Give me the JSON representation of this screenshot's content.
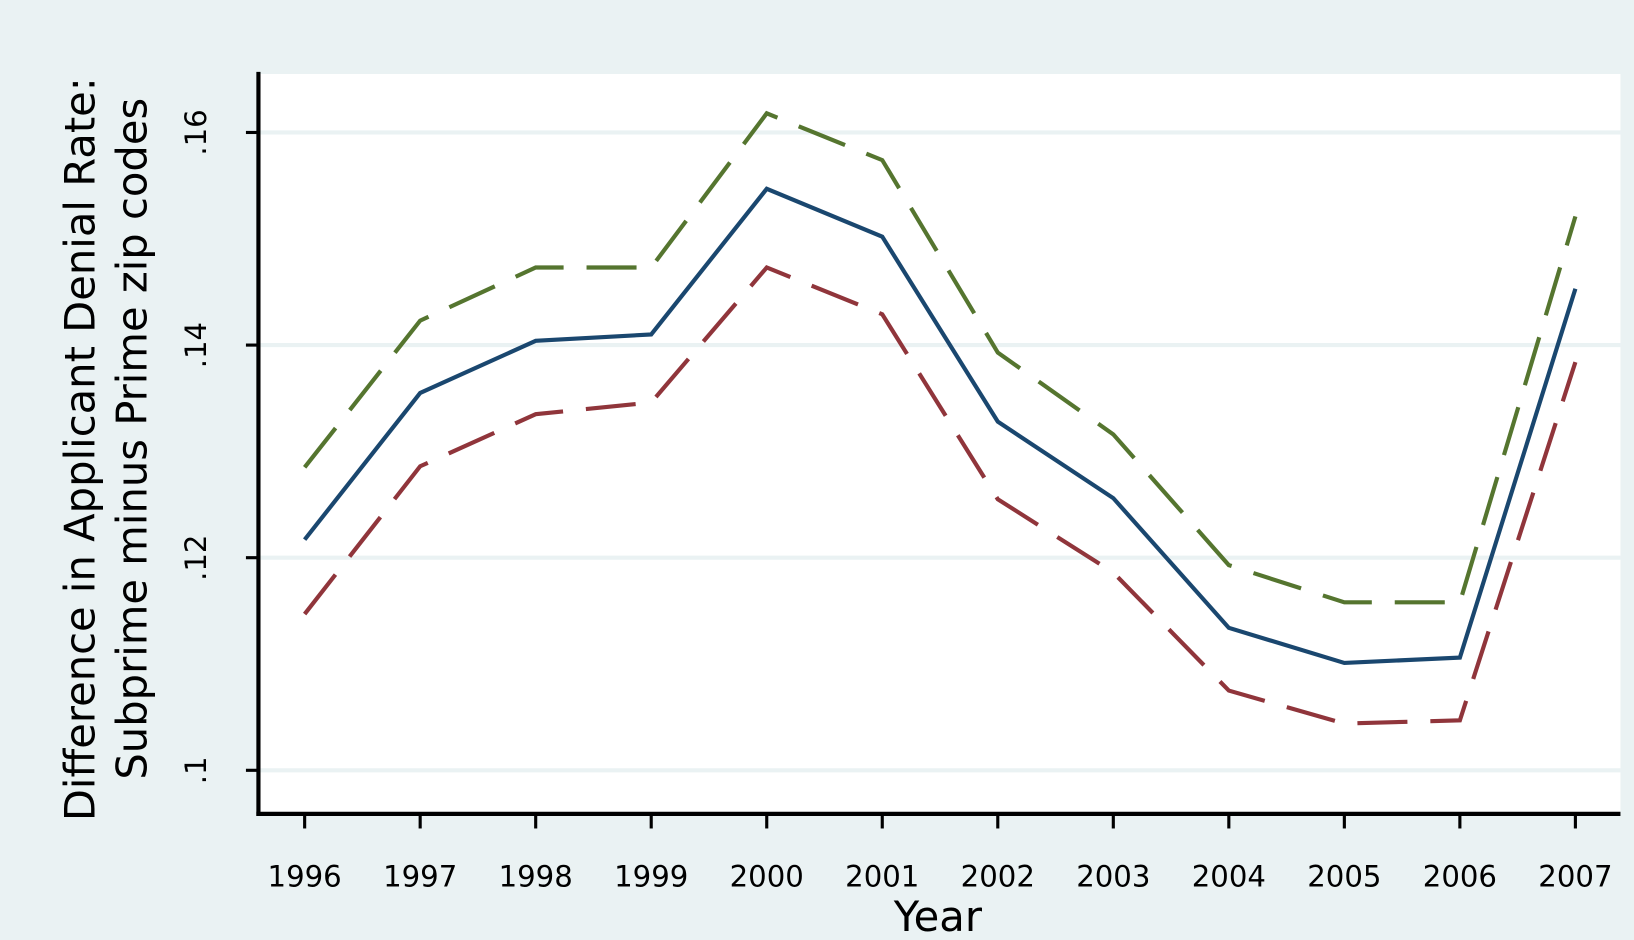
{
  "chart_data": {
    "type": "line",
    "ylabel": [
      "Difference in Applicant Denial Rate:",
      "Subprime minus Prime zip codes"
    ],
    "xlabel": "Year",
    "x": [
      1996,
      1997,
      1998,
      1999,
      2000,
      2001,
      2002,
      2003,
      2004,
      2005,
      2006,
      2007
    ],
    "series": [
      {
        "color": "#55752f",
        "dash": true,
        "values": [
          0.1285,
          0.1423,
          0.1473,
          0.1473,
          0.1618,
          0.1574,
          0.1393,
          0.1316,
          0.1193,
          0.1158,
          0.1158,
          0.1521
        ]
      },
      {
        "color": "#1a476f",
        "dash": false,
        "values": [
          0.1217,
          0.1355,
          0.1404,
          0.141,
          0.1547,
          0.1502,
          0.1328,
          0.1256,
          0.1134,
          0.1101,
          0.1106,
          0.1453
        ]
      },
      {
        "color": "#90353b",
        "dash": true,
        "values": [
          0.1147,
          0.1286,
          0.1335,
          0.1346,
          0.1473,
          0.1429,
          0.1255,
          0.1186,
          0.1075,
          0.1044,
          0.1047,
          0.1384
        ]
      }
    ],
    "xlim": [
      1995.6,
      2007.39
    ],
    "xticks": [
      1996,
      1997,
      1998,
      1999,
      2000,
      2001,
      2002,
      2003,
      2004,
      2005,
      2006,
      2007
    ],
    "ylim": [
      0.0959,
      0.1655
    ],
    "yticks": [
      {
        "value": 0.1,
        "label": ".1"
      },
      {
        "value": 0.12,
        "label": ".12"
      },
      {
        "value": 0.14,
        "label": ".14"
      },
      {
        "value": 0.16,
        "label": ".16"
      }
    ],
    "grid": true
  }
}
